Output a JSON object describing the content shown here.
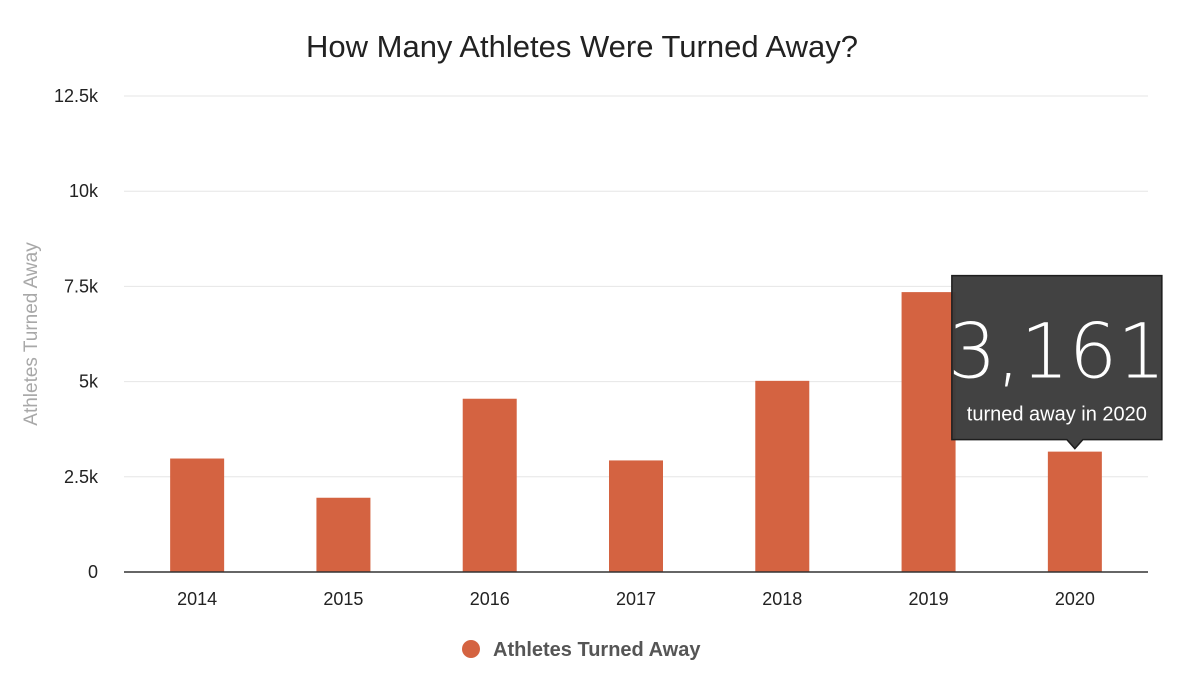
{
  "chart_data": {
    "type": "bar",
    "title": "How Many Athletes Were Turned Away?",
    "ylabel": "Athletes Turned Away",
    "xlabel": "",
    "categories": [
      "2014",
      "2015",
      "2016",
      "2017",
      "2018",
      "2019",
      "2020"
    ],
    "series": [
      {
        "name": "Athletes Turned Away",
        "values": [
          2980,
          1950,
          4550,
          2930,
          5020,
          7350,
          3161
        ]
      }
    ],
    "ylim": [
      0,
      12500
    ],
    "yticks": [
      0,
      2500,
      5000,
      7500,
      10000,
      12500
    ],
    "ytick_labels": [
      "0",
      "2.5k",
      "5k",
      "7.5k",
      "10k",
      "12.5k"
    ],
    "grid": true,
    "legend": "bottom-center",
    "colors": {
      "bar": "#d46341",
      "grid": "#e6e6e6",
      "axis": "#333333",
      "tooltip_bg": "#3c3c3c"
    },
    "tooltip": {
      "category": "2020",
      "value_text": "3,161",
      "caption": "turned away in 2020"
    }
  }
}
